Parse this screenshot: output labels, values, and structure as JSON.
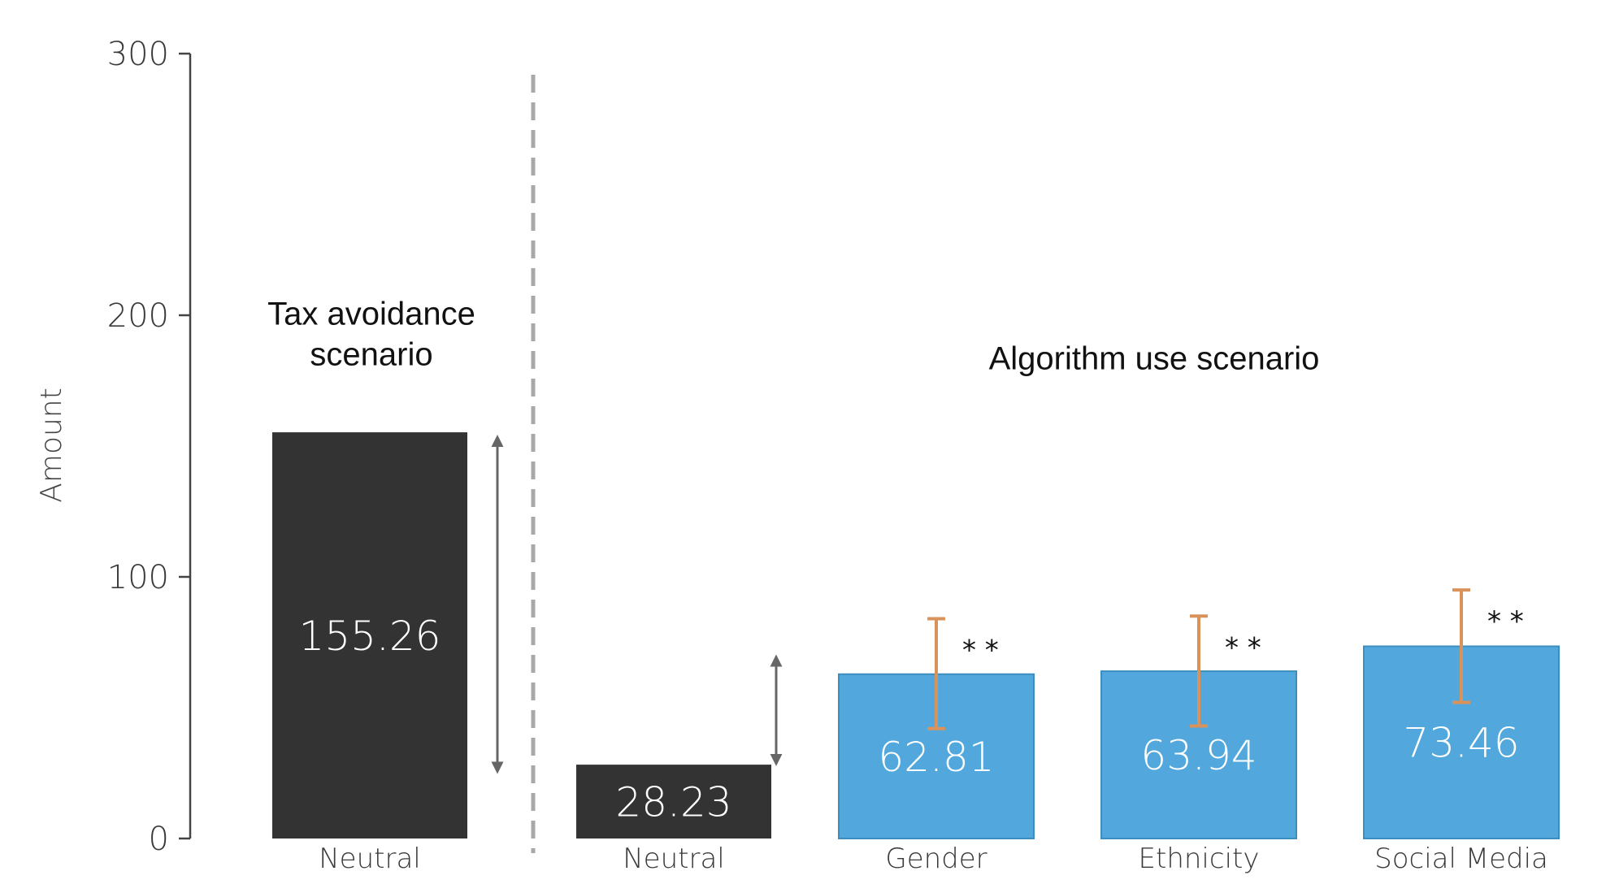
{
  "chart_data": {
    "type": "bar",
    "ylabel": "Amount",
    "ylim": [
      0,
      300
    ],
    "yticks": [
      "0",
      "100",
      "200",
      "300"
    ],
    "grid": false,
    "groups": [
      {
        "label_lines": [
          "Tax avoidance",
          "scenario"
        ]
      },
      {
        "label_lines": [
          "Algorithm use scenario"
        ]
      }
    ],
    "bars": [
      {
        "group": 0,
        "category": "Neutral",
        "value": 155.26,
        "label": "155.26",
        "color": "#333333"
      },
      {
        "group": 1,
        "category": "Neutral",
        "value": 28.23,
        "label": "28.23",
        "color": "#333333"
      },
      {
        "group": 1,
        "category": "Gender",
        "value": 62.81,
        "label": "62.81",
        "color": "#52a8dc",
        "error": [
          42,
          84
        ],
        "significance": "* *"
      },
      {
        "group": 1,
        "category": "Ethnicity",
        "value": 63.94,
        "label": "63.94",
        "color": "#52a8dc",
        "error": [
          43,
          85
        ],
        "significance": "* *"
      },
      {
        "group": 1,
        "category": "Social Media",
        "value": 73.46,
        "label": "73.46",
        "color": "#52a8dc",
        "error": [
          52,
          95
        ],
        "significance": "* *"
      }
    ],
    "difference_arrows": [
      {
        "between": "Neutral (Tax avoidance) top and bottom",
        "from": 152,
        "to": 27
      },
      {
        "between": "Neutral (Algorithm use) top and bottom",
        "from": 68,
        "to": 30
      }
    ],
    "colors": {
      "neutral": "#333333",
      "treatment": "#52a8dc",
      "error_bar": "#d9925a",
      "arrow": "#666666",
      "divider": "#a8a8a8"
    }
  }
}
